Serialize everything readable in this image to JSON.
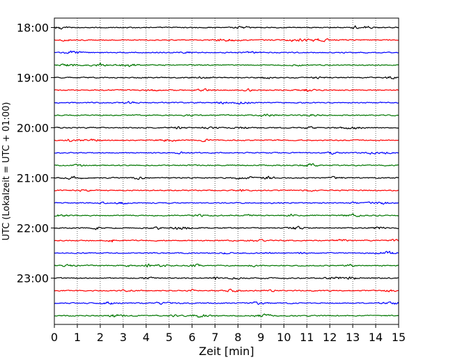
{
  "chart_data": {
    "type": "line",
    "title": "",
    "xlabel": "Zeit  [min]",
    "ylabel": "UTC (Lokalzeit = UTC + 01:00)",
    "xlim": [
      0,
      15
    ],
    "x_ticks": [
      "0",
      "1",
      "2",
      "3",
      "4",
      "5",
      "6",
      "7",
      "8",
      "9",
      "10",
      "11",
      "12",
      "13",
      "14",
      "15"
    ],
    "y_ticks": [
      "18:00",
      "19:00",
      "20:00",
      "21:00",
      "22:00",
      "23:00"
    ],
    "grid": "vertical dotted lines at each minute",
    "trace_interval_minutes": 15,
    "traces_per_hour": 4,
    "trace_count": 24,
    "trace_colors": [
      "#000000",
      "#ff0000",
      "#0000ff",
      "#007700"
    ],
    "events": [
      {
        "trace": 0,
        "minute": 13.1
      },
      {
        "trace": 8,
        "minute": 6.5
      },
      {
        "trace": 12,
        "minute": 9.2
      },
      {
        "trace": 17,
        "minute": 2.5
      },
      {
        "trace": 19,
        "minute": 4.1
      },
      {
        "trace": 20,
        "minute": 7.0
      }
    ]
  }
}
